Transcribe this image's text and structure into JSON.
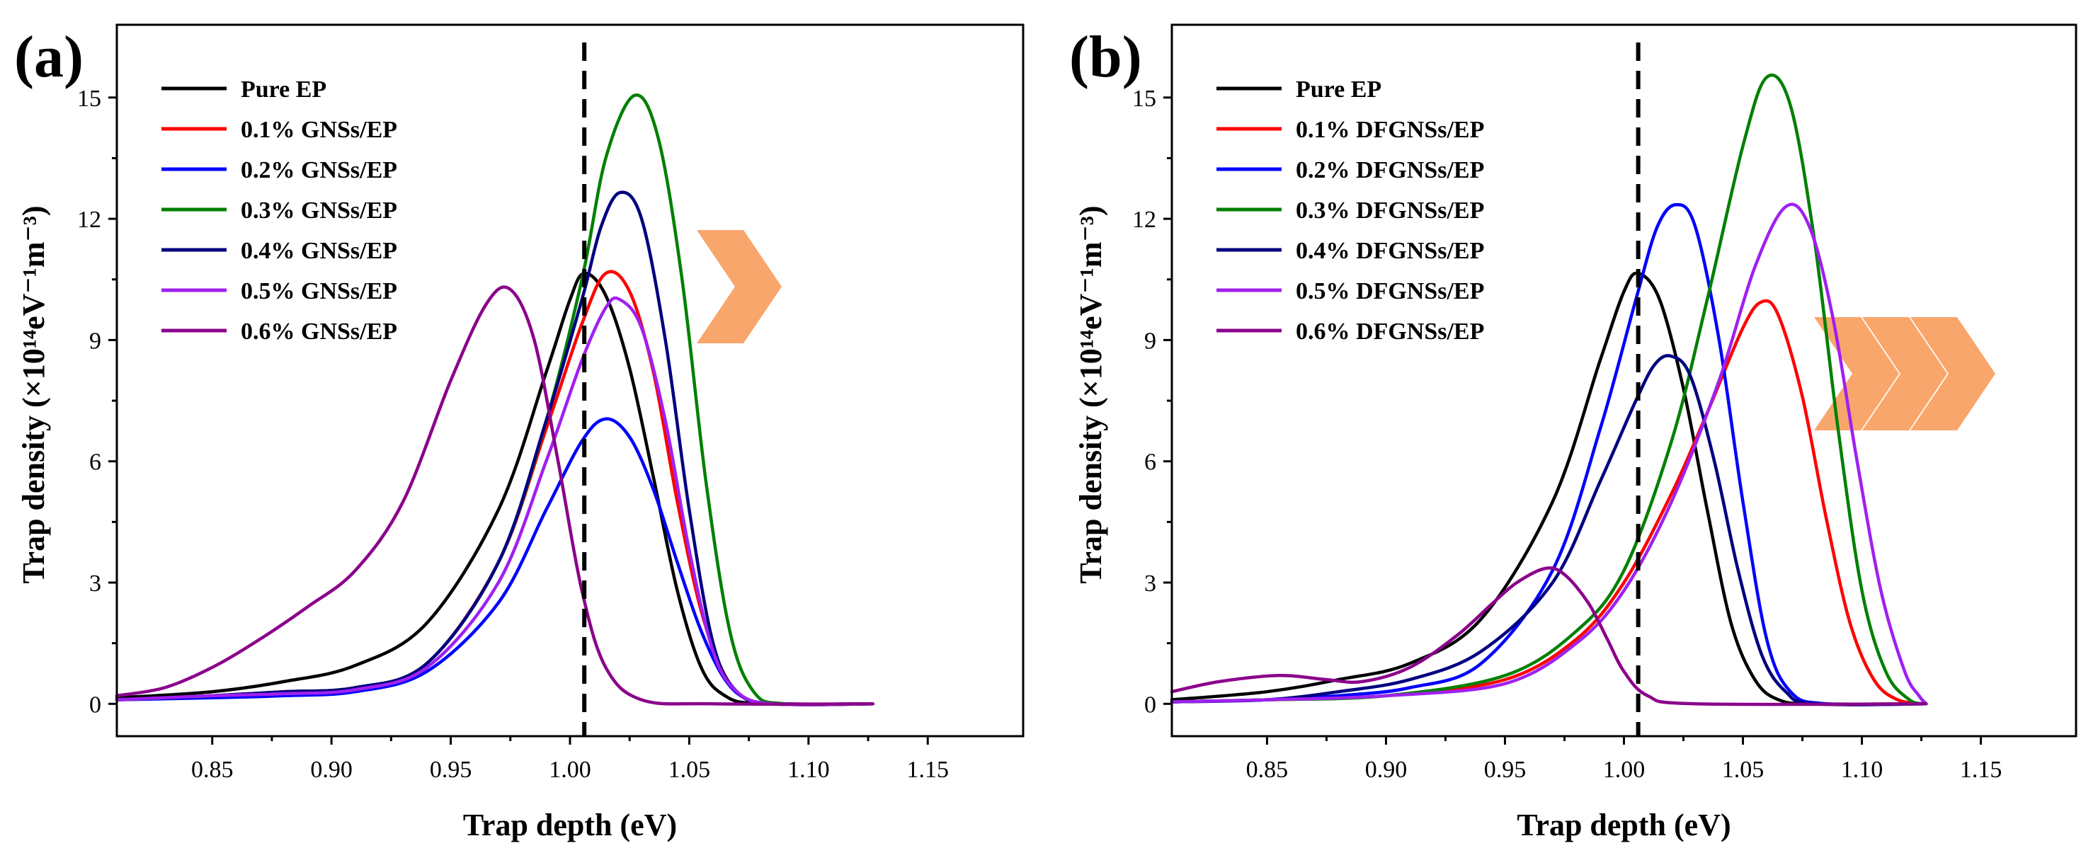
{
  "chart_data": [
    {
      "panel": "(a)",
      "type": "line",
      "title": "",
      "xlabel": "Trap depth (eV)",
      "ylabel": "Trap density (×10¹⁴eV⁻¹m⁻³)",
      "xlim": [
        0.81,
        1.19
      ],
      "ylim": [
        -0.8,
        16.8
      ],
      "xticks": [
        "0.85",
        "0.90",
        "0.95",
        "1.00",
        "1.05",
        "1.10",
        "1.15"
      ],
      "yticks": [
        "0",
        "3",
        "6",
        "9",
        "12",
        "15"
      ],
      "reference_line_x": 1.006,
      "arrow_count": 1,
      "legend_position": "top-left",
      "series": [
        {
          "name": "Pure EP",
          "color": "#000000",
          "x": [
            0.81,
            0.85,
            0.88,
            0.91,
            0.94,
            0.97,
            0.99,
            1.0,
            1.006,
            1.015,
            1.025,
            1.035,
            1.045,
            1.055,
            1.065,
            1.08,
            1.127
          ],
          "values": [
            0.15,
            0.3,
            0.55,
            0.95,
            2.0,
            4.8,
            8.2,
            10.0,
            10.65,
            10.1,
            8.3,
            5.6,
            2.8,
            0.9,
            0.2,
            0.0,
            0.0
          ]
        },
        {
          "name": "0.1% GNSs/EP",
          "color": "#ff0000",
          "x": [
            0.81,
            0.85,
            0.88,
            0.91,
            0.94,
            0.97,
            0.99,
            1.005,
            1.015,
            1.025,
            1.035,
            1.045,
            1.055,
            1.065,
            1.075,
            1.09,
            1.127
          ],
          "values": [
            0.1,
            0.2,
            0.3,
            0.4,
            1.0,
            3.5,
            6.8,
            9.4,
            10.65,
            10.2,
            8.2,
            5.0,
            2.3,
            0.7,
            0.1,
            0.0,
            0.0
          ]
        },
        {
          "name": "0.2% GNSs/EP",
          "color": "#0000ff",
          "x": [
            0.81,
            0.85,
            0.88,
            0.91,
            0.94,
            0.97,
            0.99,
            1.005,
            1.015,
            1.025,
            1.035,
            1.045,
            1.055,
            1.065,
            1.075,
            1.09,
            1.127
          ],
          "values": [
            0.1,
            0.15,
            0.2,
            0.3,
            0.8,
            2.5,
            4.8,
            6.5,
            7.05,
            6.6,
            5.3,
            3.5,
            1.8,
            0.6,
            0.1,
            0.0,
            0.0
          ]
        },
        {
          "name": "0.3% GNSs/EP",
          "color": "#008000",
          "x": [
            0.81,
            0.85,
            0.88,
            0.91,
            0.94,
            0.97,
            0.99,
            1.005,
            1.015,
            1.027,
            1.037,
            1.047,
            1.057,
            1.067,
            1.077,
            1.09,
            1.127
          ],
          "values": [
            0.1,
            0.2,
            0.3,
            0.4,
            1.0,
            3.5,
            7.0,
            10.5,
            13.5,
            15.05,
            14.0,
            10.5,
            5.5,
            1.8,
            0.3,
            0.0,
            0.0
          ]
        },
        {
          "name": "0.4% GNSs/EP",
          "color": "#000080",
          "x": [
            0.81,
            0.85,
            0.88,
            0.91,
            0.94,
            0.97,
            0.99,
            1.005,
            1.013,
            1.021,
            1.03,
            1.04,
            1.05,
            1.06,
            1.07,
            1.085,
            1.127
          ],
          "values": [
            0.1,
            0.2,
            0.3,
            0.4,
            1.0,
            3.5,
            7.0,
            10.0,
            11.8,
            12.65,
            12.0,
            9.0,
            4.8,
            1.5,
            0.3,
            0.0,
            0.0
          ]
        },
        {
          "name": "0.5% GNSs/EP",
          "color": "#a020f0",
          "x": [
            0.81,
            0.85,
            0.88,
            0.91,
            0.94,
            0.97,
            0.99,
            1.005,
            1.015,
            1.021,
            1.03,
            1.04,
            1.05,
            1.06,
            1.07,
            1.085,
            1.127
          ],
          "values": [
            0.1,
            0.2,
            0.25,
            0.35,
            0.9,
            3.0,
            6.0,
            8.5,
            9.8,
            10.0,
            9.3,
            7.0,
            3.8,
            1.3,
            0.3,
            0.0,
            0.0
          ]
        },
        {
          "name": "0.6% GNSs/EP",
          "color": "#8b008b",
          "x": [
            0.81,
            0.83,
            0.85,
            0.87,
            0.89,
            0.91,
            0.93,
            0.95,
            0.965,
            0.975,
            0.985,
            0.995,
            1.005,
            1.015,
            1.03,
            1.06,
            1.127
          ],
          "values": [
            0.2,
            0.4,
            0.9,
            1.6,
            2.4,
            3.3,
            5.0,
            8.0,
            9.9,
            10.25,
            9.0,
            6.0,
            2.8,
            0.9,
            0.1,
            0.0,
            0.0
          ]
        }
      ]
    },
    {
      "panel": "(b)",
      "type": "line",
      "title": "",
      "xlabel": "Trap depth (eV)",
      "ylabel": "Trap density (×10¹⁴eV⁻¹m⁻³)",
      "xlim": [
        0.81,
        1.19
      ],
      "ylim": [
        -0.8,
        16.8
      ],
      "xticks": [
        "0.85",
        "0.90",
        "0.95",
        "1.00",
        "1.05",
        "1.10",
        "1.15"
      ],
      "yticks": [
        "0",
        "3",
        "6",
        "9",
        "12",
        "15"
      ],
      "reference_line_x": 1.006,
      "arrow_count": 3,
      "legend_position": "top-left",
      "series": [
        {
          "name": "Pure EP",
          "color": "#000000",
          "x": [
            0.81,
            0.85,
            0.88,
            0.91,
            0.94,
            0.97,
            0.99,
            1.0,
            1.006,
            1.015,
            1.025,
            1.035,
            1.045,
            1.055,
            1.065,
            1.08,
            1.127
          ],
          "values": [
            0.1,
            0.3,
            0.6,
            1.0,
            2.1,
            5.0,
            8.5,
            10.2,
            10.65,
            10.0,
            7.8,
            4.8,
            2.0,
            0.6,
            0.1,
            0.0,
            0.0
          ]
        },
        {
          "name": "0.1% DFGNSs/EP",
          "color": "#ff0000",
          "x": [
            0.81,
            0.85,
            0.9,
            0.95,
            0.98,
            1.0,
            1.02,
            1.035,
            1.05,
            1.058,
            1.065,
            1.075,
            1.085,
            1.095,
            1.105,
            1.115,
            1.127
          ],
          "values": [
            0.05,
            0.1,
            0.2,
            0.6,
            1.6,
            3.0,
            5.2,
            7.2,
            9.3,
            9.95,
            9.6,
            7.6,
            4.6,
            2.0,
            0.6,
            0.1,
            0.0
          ]
        },
        {
          "name": "0.2% DFGNSs/EP",
          "color": "#0000ff",
          "x": [
            0.81,
            0.85,
            0.88,
            0.91,
            0.94,
            0.97,
            0.99,
            1.005,
            1.014,
            1.022,
            1.03,
            1.04,
            1.05,
            1.06,
            1.07,
            1.085,
            1.127
          ],
          "values": [
            0.05,
            0.1,
            0.2,
            0.4,
            1.0,
            3.3,
            6.8,
            10.0,
            11.8,
            12.35,
            11.8,
            9.0,
            5.0,
            1.6,
            0.3,
            0.0,
            0.0
          ]
        },
        {
          "name": "0.3% DFGNSs/EP",
          "color": "#008000",
          "x": [
            0.81,
            0.85,
            0.9,
            0.95,
            0.98,
            1.0,
            1.02,
            1.035,
            1.05,
            1.06,
            1.07,
            1.08,
            1.09,
            1.1,
            1.11,
            1.12,
            1.127
          ],
          "values": [
            0.05,
            0.1,
            0.2,
            0.7,
            1.8,
            3.3,
            6.5,
            10.0,
            13.8,
            15.5,
            14.8,
            11.5,
            6.8,
            2.8,
            0.8,
            0.1,
            0.0
          ]
        },
        {
          "name": "0.4% DFGNSs/EP",
          "color": "#000080",
          "x": [
            0.81,
            0.85,
            0.88,
            0.91,
            0.94,
            0.97,
            0.99,
            1.005,
            1.013,
            1.02,
            1.028,
            1.038,
            1.048,
            1.058,
            1.068,
            1.08,
            1.127
          ],
          "values": [
            0.05,
            0.1,
            0.3,
            0.6,
            1.3,
            3.0,
            5.5,
            7.5,
            8.4,
            8.6,
            8.1,
            6.0,
            3.3,
            1.2,
            0.3,
            0.0,
            0.0
          ]
        },
        {
          "name": "0.5% DFGNSs/EP",
          "color": "#a020f0",
          "x": [
            0.81,
            0.85,
            0.9,
            0.95,
            0.98,
            1.0,
            1.02,
            1.04,
            1.055,
            1.068,
            1.078,
            1.088,
            1.098,
            1.108,
            1.118,
            1.124,
            1.127
          ],
          "values": [
            0.05,
            0.1,
            0.2,
            0.5,
            1.5,
            2.8,
            5.0,
            8.0,
            10.8,
            12.3,
            11.8,
            9.5,
            6.0,
            2.8,
            0.8,
            0.2,
            0.0
          ]
        },
        {
          "name": "0.6% DFGNSs/EP",
          "color": "#8b008b",
          "x": [
            0.81,
            0.83,
            0.855,
            0.875,
            0.89,
            0.91,
            0.93,
            0.945,
            0.955,
            0.967,
            0.975,
            0.985,
            0.993,
            1.0,
            1.01,
            1.03,
            1.127
          ],
          "values": [
            0.3,
            0.55,
            0.7,
            0.6,
            0.55,
            0.9,
            1.7,
            2.5,
            3.0,
            3.35,
            3.2,
            2.5,
            1.6,
            0.8,
            0.2,
            0.0,
            0.0
          ]
        }
      ]
    }
  ]
}
